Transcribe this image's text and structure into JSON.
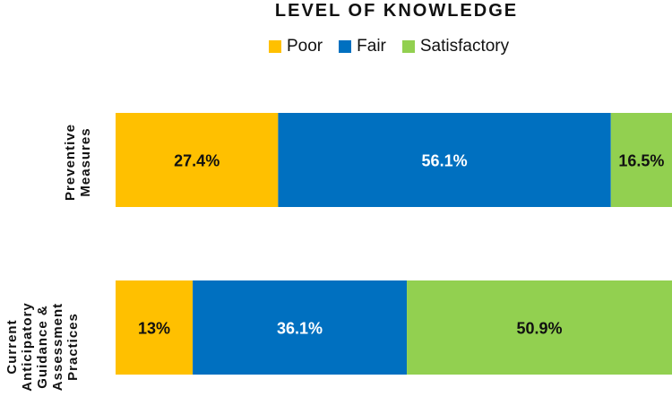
{
  "chart_data": {
    "type": "bar",
    "orientation": "horizontal",
    "stacked": true,
    "title": "LEVEL OF KNOWLEDGE",
    "categories": [
      "Preventive Measures",
      "Current Anticipatory Guidance & Assessment Practices"
    ],
    "series": [
      {
        "name": "Poor",
        "color": "#FFC000",
        "values": [
          27.4,
          13
        ],
        "labels": [
          "27.4%",
          "13%"
        ]
      },
      {
        "name": "Fair",
        "color": "#0070C0",
        "values": [
          56.1,
          36.1
        ],
        "labels": [
          "56.1%",
          "36.1%"
        ]
      },
      {
        "name": "Satisfactory",
        "color": "#92D050",
        "values": [
          16.5,
          50.9
        ],
        "labels": [
          "16.5%",
          "50.9%"
        ]
      }
    ],
    "xlim": [
      0,
      100
    ],
    "legend_position": "top",
    "grid": false
  }
}
